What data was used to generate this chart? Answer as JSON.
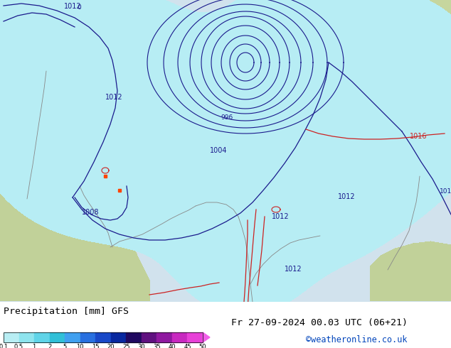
{
  "title_left": "Precipitation [mm] GFS",
  "title_right": "Fr 27-09-2024 00.03 UTC (06+21)",
  "credit": "©weatheronline.co.uk",
  "colorbar_labels": [
    "0.1",
    "0.5",
    "1",
    "2",
    "5",
    "10",
    "15",
    "20",
    "25",
    "30",
    "35",
    "40",
    "45",
    "50"
  ],
  "colorbar_colors": [
    "#b8eef4",
    "#8ee4ee",
    "#60d4e8",
    "#30c0d8",
    "#40a0f0",
    "#2870e0",
    "#1848c8",
    "#0828a0",
    "#200860",
    "#601080",
    "#9018a0",
    "#c828c0",
    "#e840d8",
    "#f060e8"
  ],
  "figsize": [
    6.34,
    4.9
  ],
  "dpi": 100
}
